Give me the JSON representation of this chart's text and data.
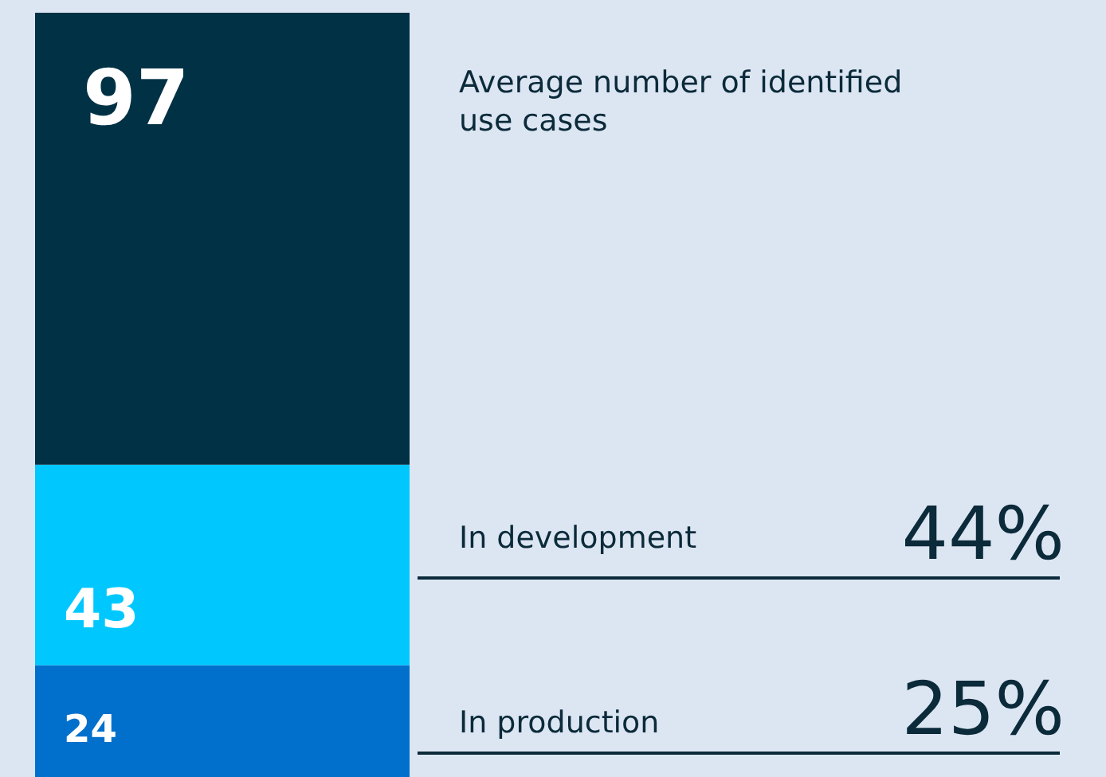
{
  "chart_data": {
    "type": "bar",
    "stacked": true,
    "data_labels": true,
    "categories": [
      null
    ],
    "series": [
      {
        "name": "In production",
        "color": "#0070cc",
        "values": [
          24
        ]
      },
      {
        "name": "In development",
        "color": "#00c8ff",
        "values": [
          43
        ]
      },
      {
        "name": "Average number of identified use cases",
        "color": "#003145",
        "values": [
          97
        ]
      }
    ],
    "annotations": [
      "25%",
      "44%"
    ],
    "legend": false
  }
}
